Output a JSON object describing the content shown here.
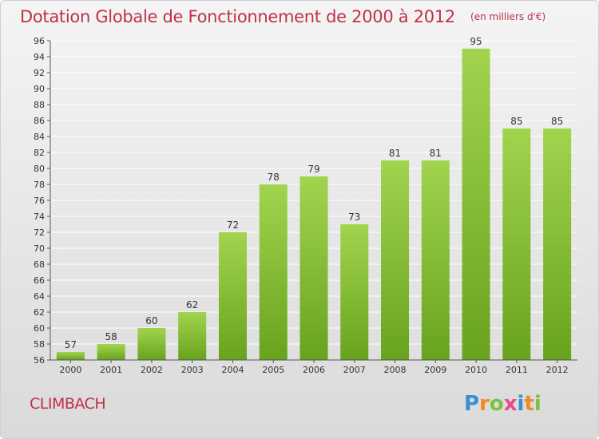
{
  "chart_data": {
    "type": "bar",
    "title": "Dotation Globale de Fonctionnement de 2000 à 2012",
    "subtitle": "(en milliers d'€)",
    "categories": [
      "2000",
      "2001",
      "2002",
      "2003",
      "2004",
      "2005",
      "2006",
      "2007",
      "2008",
      "2009",
      "2010",
      "2011",
      "2012"
    ],
    "values": [
      57,
      58,
      60,
      62,
      72,
      78,
      79,
      73,
      81,
      81,
      95,
      85,
      85
    ],
    "ylim": [
      56,
      96
    ],
    "yticks": [
      56,
      58,
      60,
      62,
      64,
      66,
      68,
      70,
      72,
      74,
      76,
      78,
      80,
      82,
      84,
      86,
      88,
      90,
      92,
      94,
      96
    ],
    "xlabel": "",
    "ylabel": "",
    "grid": true,
    "bar_color": "#7dba2f",
    "bar_color_light": "#9fd14d",
    "label_color": "#333333"
  },
  "place": "CLIMBACH",
  "logo": {
    "text": "Proxiti",
    "letters": [
      {
        "ch": "P",
        "color": "#3a8fd0"
      },
      {
        "ch": "r",
        "color": "#f08a24"
      },
      {
        "ch": "o",
        "color": "#7cc142"
      },
      {
        "ch": "x",
        "color": "#e64a8a"
      },
      {
        "ch": "i",
        "color": "#3a8fd0"
      },
      {
        "ch": "t",
        "color": "#f08a24"
      },
      {
        "ch": "i",
        "color": "#7cc142"
      }
    ]
  },
  "colors": {
    "accent": "#c0304a",
    "grid": "#ffffff"
  }
}
